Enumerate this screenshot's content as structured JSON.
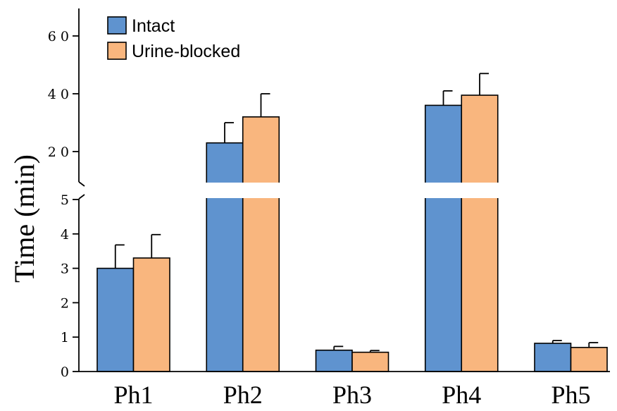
{
  "chart_data": {
    "type": "bar",
    "ylabel": "Time (min)",
    "categories": [
      "Ph1",
      "Ph2",
      "Ph3",
      "Ph4",
      "Ph5"
    ],
    "series": [
      {
        "name": "Intact",
        "color": "#5f93cf",
        "values": [
          3.0,
          23,
          0.62,
          36,
          0.82
        ],
        "errors": [
          0.68,
          7,
          0.11,
          5,
          0.08
        ]
      },
      {
        "name": "Urine-blocked",
        "color": "#f9b67e",
        "values": [
          3.3,
          32,
          0.56,
          39.5,
          0.7
        ],
        "errors": [
          0.68,
          8,
          0.05,
          7.5,
          0.14
        ]
      }
    ],
    "axis_break": true,
    "lower_segment": {
      "ylim": [
        0,
        5
      ],
      "ticks": [
        "0",
        "1",
        "2",
        "3",
        "4",
        "5"
      ]
    },
    "upper_segment": {
      "ylim": [
        10,
        70
      ],
      "ticks": [
        "2 0",
        "4 0",
        "6 0"
      ]
    },
    "legend_position": "top-left",
    "grid": false
  }
}
